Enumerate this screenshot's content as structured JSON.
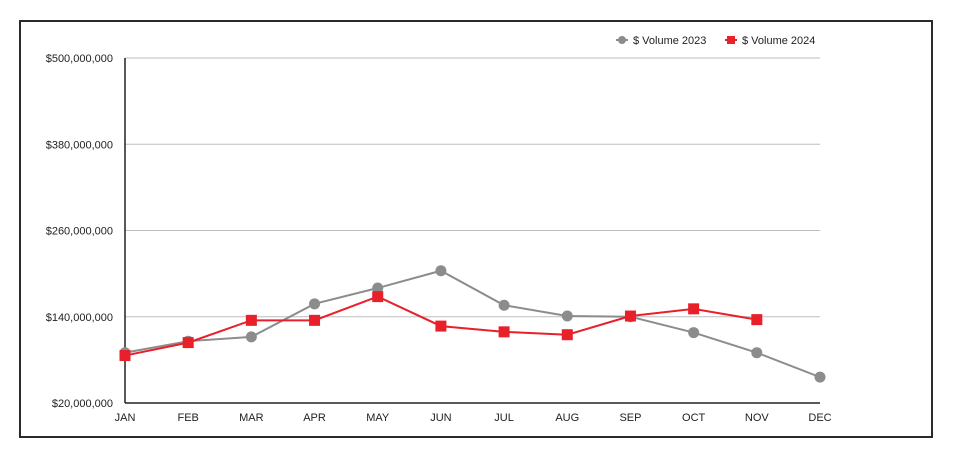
{
  "chart_data": {
    "type": "line",
    "title": "",
    "xlabel": "",
    "ylabel": "",
    "categories": [
      "JAN",
      "FEB",
      "MAR",
      "APR",
      "MAY",
      "JUN",
      "JUL",
      "AUG",
      "SEP",
      "OCT",
      "NOV",
      "DEC"
    ],
    "y_ticks": [
      {
        "value": 20000000,
        "label": "$20,000,000"
      },
      {
        "value": 140000000,
        "label": "$140,000,000"
      },
      {
        "value": 260000000,
        "label": "$260,000,000"
      },
      {
        "value": 380000000,
        "label": "$380,000,000"
      },
      {
        "value": 500000000,
        "label": "$500,000,000"
      }
    ],
    "ylim": [
      20000000,
      500000000
    ],
    "grid": true,
    "legend_position": "top-right",
    "series": [
      {
        "name": "$ Volume 2023",
        "color": "#8c8c8c",
        "marker": "circle",
        "values": [
          90000000,
          106000000,
          112000000,
          158000000,
          180000000,
          204000000,
          156000000,
          141000000,
          140000000,
          118000000,
          90000000,
          56000000
        ]
      },
      {
        "name": "$ Volume 2024",
        "color": "#e8202a",
        "marker": "square",
        "values": [
          86000000,
          104000000,
          135000000,
          135000000,
          168000000,
          127000000,
          119000000,
          115000000,
          141000000,
          151000000,
          136000000,
          null
        ]
      }
    ]
  }
}
